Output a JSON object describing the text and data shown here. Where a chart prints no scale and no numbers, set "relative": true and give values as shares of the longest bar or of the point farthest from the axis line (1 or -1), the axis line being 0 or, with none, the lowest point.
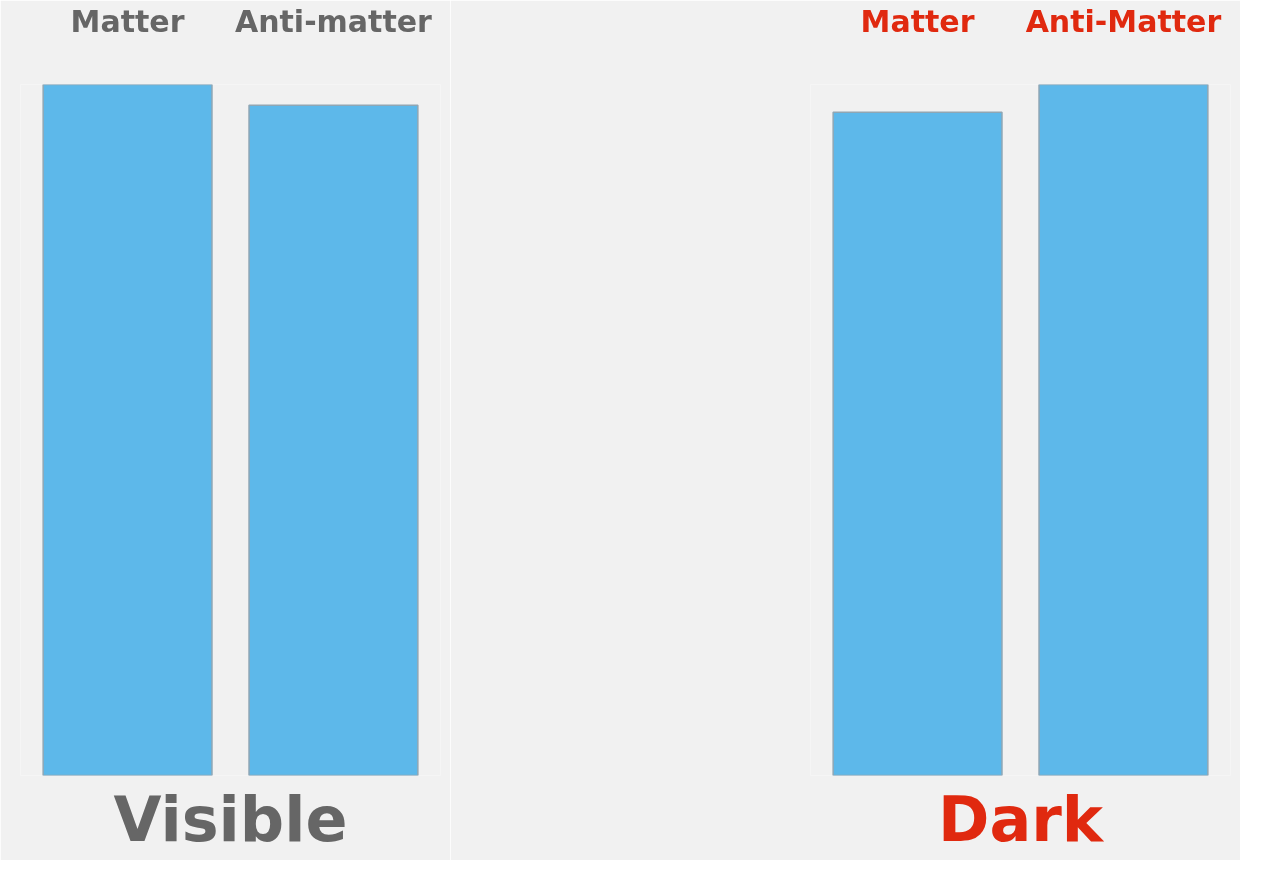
{
  "chart_data": [
    {
      "type": "bar",
      "relative": true,
      "title": "Visible",
      "categories": [
        "Matter",
        "Anti-matter"
      ],
      "values": [
        1,
        0.97
      ],
      "color": "#5db8ea"
    },
    {
      "type": "bar",
      "relative": true,
      "title": "Dark",
      "categories": [
        "Matter",
        "Anti-Matter"
      ],
      "values": [
        0.96,
        1
      ],
      "color": "#5db8ea"
    }
  ]
}
